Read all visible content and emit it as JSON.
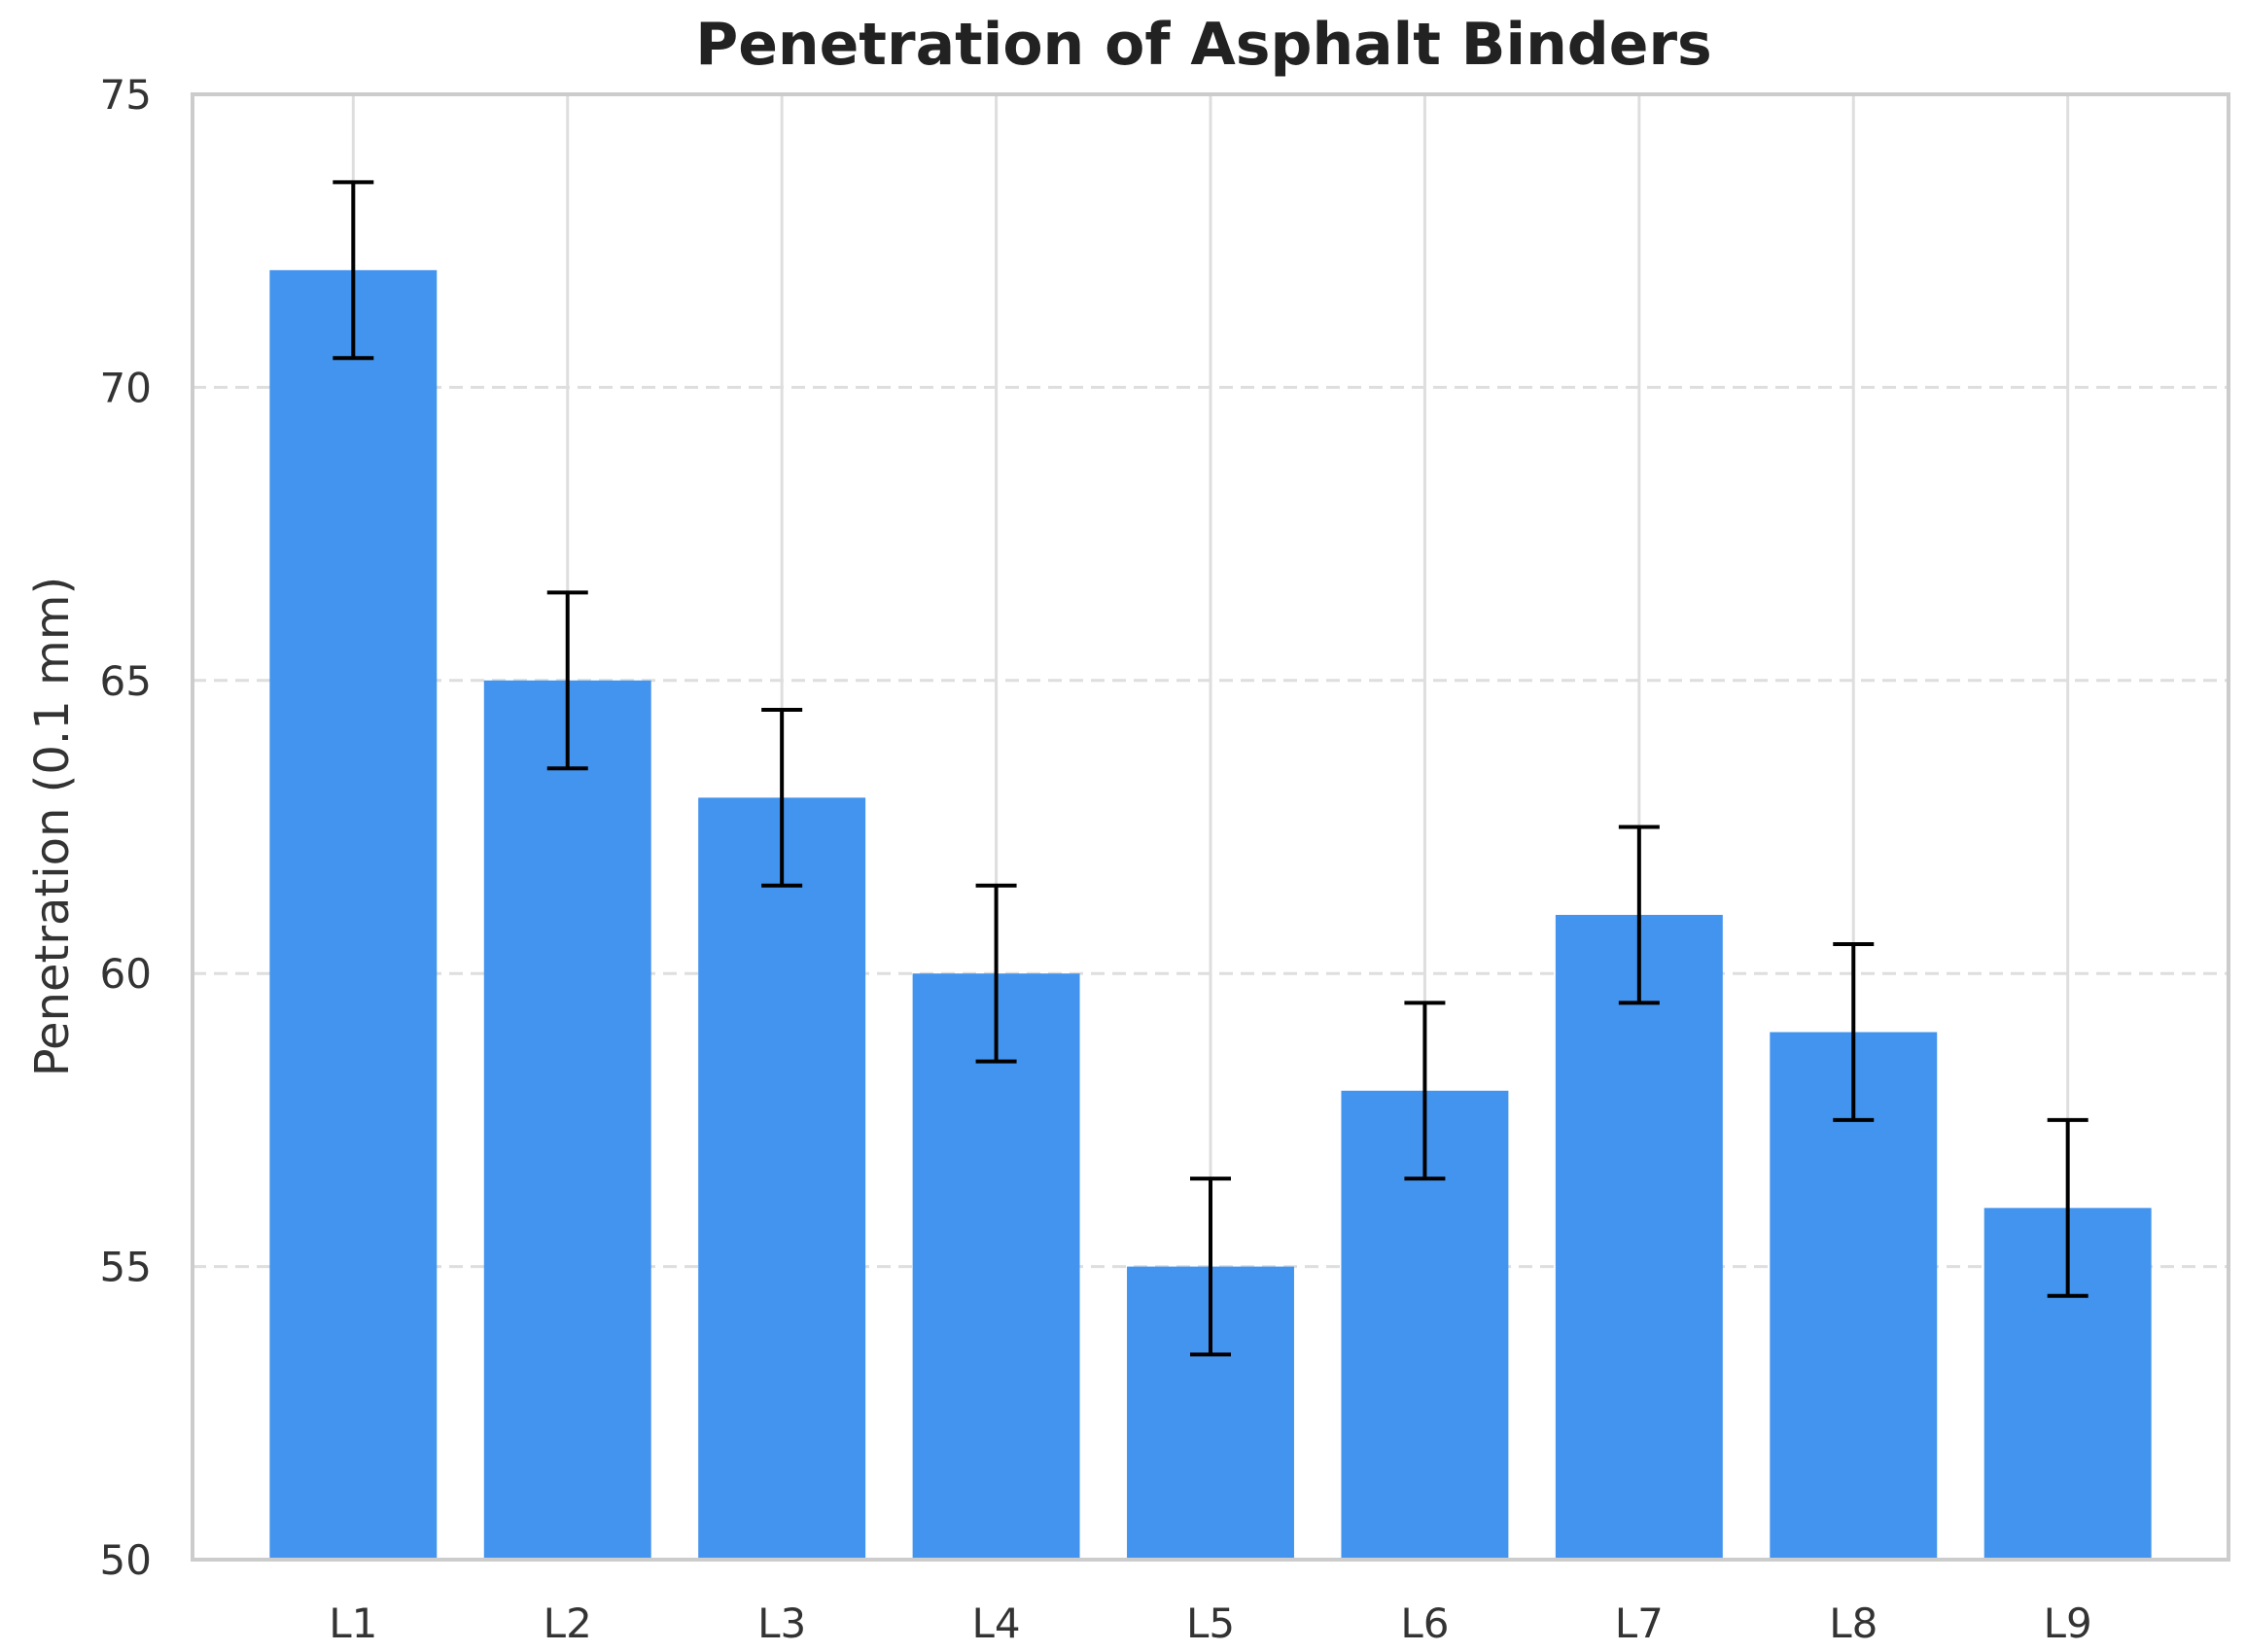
{
  "chart_data": {
    "type": "bar",
    "title": "Penetration of Asphalt Binders",
    "xlabel": "",
    "ylabel": "Penetration (0.1 mm)",
    "categories": [
      "L1",
      "L2",
      "L3",
      "L4",
      "L5",
      "L6",
      "L7",
      "L8",
      "L9"
    ],
    "values": [
      72,
      65,
      63,
      60,
      55,
      58,
      61,
      59,
      56
    ],
    "error": [
      1.5,
      1.5,
      1.5,
      1.5,
      1.5,
      1.5,
      1.5,
      1.5,
      1.5
    ],
    "ylim": [
      50,
      75
    ],
    "yticks": [
      50,
      55,
      60,
      65,
      70,
      75
    ],
    "grid": true,
    "colors": {
      "bar": "#4394ee",
      "errorbar": "#000000",
      "grid": "#dedede",
      "frame": "#cccccc"
    }
  }
}
